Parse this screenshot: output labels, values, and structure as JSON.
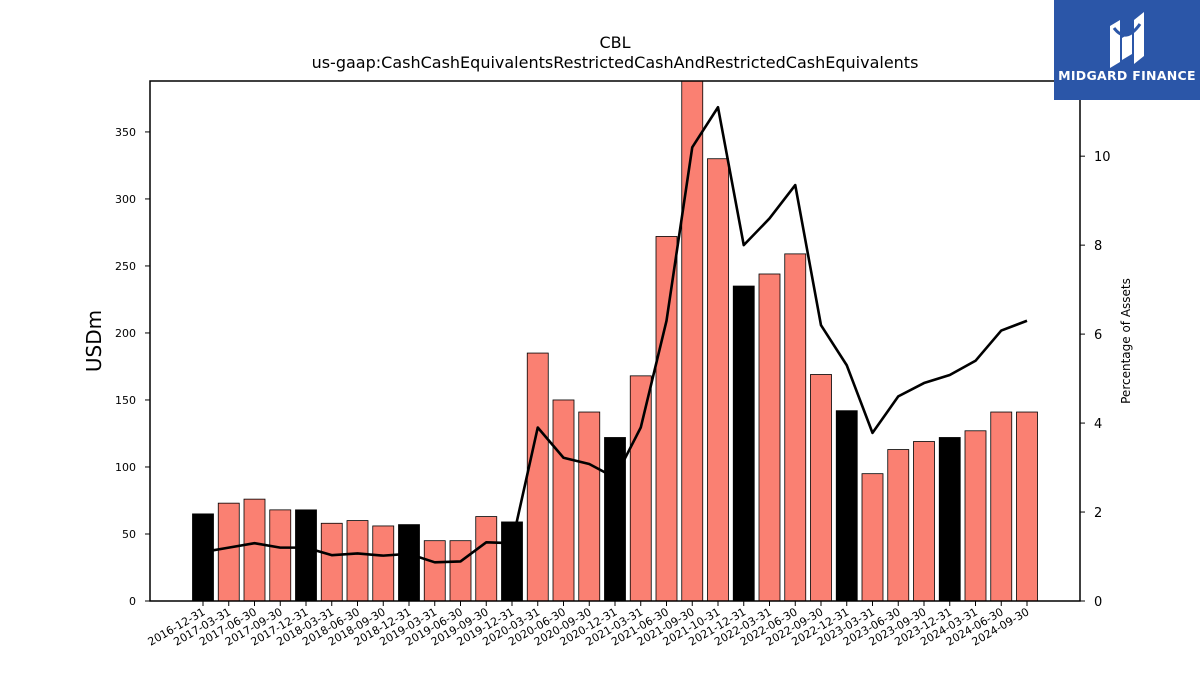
{
  "chart_data": {
    "type": "bar",
    "title": "CBL",
    "subtitle": "us-gaap:CashCashEquivalentsRestrictedCashAndRestrictedCashEquivalents",
    "ylabel": "USDm",
    "y2label": "Percentage of Assets",
    "ylim": [
      0,
      388
    ],
    "y2lim": [
      0,
      11.69
    ],
    "yticks": [
      0,
      50,
      100,
      150,
      200,
      250,
      300,
      350
    ],
    "y2ticks": [
      0,
      2,
      4,
      6,
      8,
      10
    ],
    "grid": false,
    "colors": {
      "year_end": "#000000",
      "quarter": "#fa8072",
      "line": "#000000"
    },
    "categories": [
      "2016-12-31",
      "2017-03-31",
      "2017-06-30",
      "2017-09-30",
      "2017-12-31",
      "2018-03-31",
      "2018-06-30",
      "2018-09-30",
      "2018-12-31",
      "2019-03-31",
      "2019-06-30",
      "2019-09-30",
      "2019-12-31",
      "2020-03-31",
      "2020-06-30",
      "2020-09-30",
      "2020-12-31",
      "2021-03-31",
      "2021-06-30",
      "2021-09-30",
      "2021-10-31",
      "2021-12-31",
      "2022-03-31",
      "2022-06-30",
      "2022-09-30",
      "2022-12-31",
      "2023-03-31",
      "2023-06-30",
      "2023-09-30",
      "2023-12-31",
      "2024-03-31",
      "2024-06-30",
      "2024-09-30"
    ],
    "year_end": [
      true,
      false,
      false,
      false,
      true,
      false,
      false,
      false,
      true,
      false,
      false,
      false,
      true,
      false,
      false,
      false,
      true,
      false,
      false,
      false,
      false,
      true,
      false,
      false,
      false,
      true,
      false,
      false,
      false,
      true,
      false,
      false,
      false
    ],
    "series": [
      {
        "name": "USDm",
        "kind": "bar",
        "values": [
          65,
          73,
          76,
          68,
          68,
          58,
          60,
          56,
          57,
          45,
          45,
          63,
          59,
          185,
          150,
          141,
          122,
          168,
          272,
          390,
          330,
          235,
          244,
          259,
          169,
          142,
          95,
          113,
          119,
          122,
          127,
          141,
          141
        ]
      },
      {
        "name": "Percentage of Assets",
        "kind": "line",
        "axis": "right",
        "values": [
          1.1,
          1.2,
          1.3,
          1.2,
          1.2,
          1.03,
          1.07,
          1.02,
          1.06,
          0.87,
          0.89,
          1.32,
          1.3,
          3.9,
          3.22,
          3.08,
          2.77,
          3.9,
          6.3,
          10.2,
          11.1,
          8.0,
          8.6,
          9.35,
          6.2,
          5.3,
          3.78,
          4.6,
          4.9,
          5.08,
          5.4,
          6.08,
          6.3
        ]
      }
    ]
  },
  "logo": {
    "text": "MIDGARD FINANCE"
  }
}
